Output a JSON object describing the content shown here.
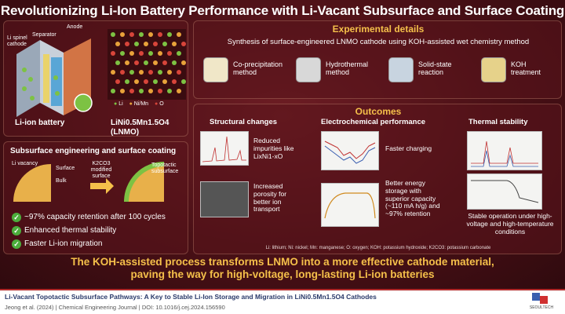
{
  "title": "Revolutionizing Li-Ion Battery Performance with Li-Vacant Subsurface and Surface Coating",
  "battery_diagram": {
    "labels": [
      "Anode",
      "Separator",
      "Li spinel cathode"
    ],
    "caption": "Li-ion battery"
  },
  "lnmo": {
    "legend": [
      "Li",
      "Ni/Mn",
      "O"
    ],
    "caption": "LiNi0.5Mn1.5O4 (LNMO)"
  },
  "subsurface": {
    "heading": "Subsurface engineering and surface coating",
    "labels": {
      "vacancy": "Li vacancy",
      "surface": "Surface",
      "bulk": "Bulk",
      "k2co3": "K2CO3 modified surface",
      "topotactic": "Topotactic subsurface"
    },
    "benefits": [
      "~97% capacity retention after 100 cycles",
      "Enhanced thermal stability",
      "Faster Li-ion migration"
    ]
  },
  "experimental": {
    "heading": "Experimental details",
    "subheading": "Synthesis of surface-engineered LNMO cathode using KOH-assisted wet chemistry method",
    "methods": [
      "Co-precipitation method",
      "Hydrothermal method",
      "Solid-state reaction",
      "KOH treatment"
    ]
  },
  "outcomes": {
    "heading": "Outcomes",
    "structural": {
      "heading": "Structural changes",
      "item1": "Reduced impurities like LixNi1-xO",
      "item2": "Increased porosity for better ion transport"
    },
    "electrochemical": {
      "heading": "Electrochemical performance",
      "item1": "Faster charging",
      "item2": "Better energy storage with superior capacity (~110 mA h/g) and ~97% retention"
    },
    "thermal": {
      "heading": "Thermal stability",
      "item1": "Stable operation under high-voltage and high-temperature conditions"
    },
    "footnote": "Li: lithium; Ni: nickel; Mn: manganese; O: oxygen; KOH: potassium hydroxide; K2CO3: potassium carbonate"
  },
  "conclusion": {
    "line1": "The KOH-assisted process transforms LNMO into a more effective cathode material,",
    "line2": "paving the way for high-voltage, long-lasting Li-ion batteries"
  },
  "footer": {
    "paper_title": "Li-Vacant Topotactic Subsurface Pathways: A Key to Stable Li-Ion Storage and Migration in LiNi0.5Mn1.5O4 Cathodes",
    "citation": "Jeong et al. (2024)  |  Chemical Engineering Journal  |  DOI: 10.1016/j.cej.2024.156590",
    "logo_text": "SEOULTECH"
  },
  "colors": {
    "background": "#4a1016",
    "accent_gold": "#f5c04a",
    "check_green": "#4cae3c",
    "li_green": "#7dc243",
    "nimn_orange": "#e8a23a",
    "o_red": "#d8453a"
  }
}
